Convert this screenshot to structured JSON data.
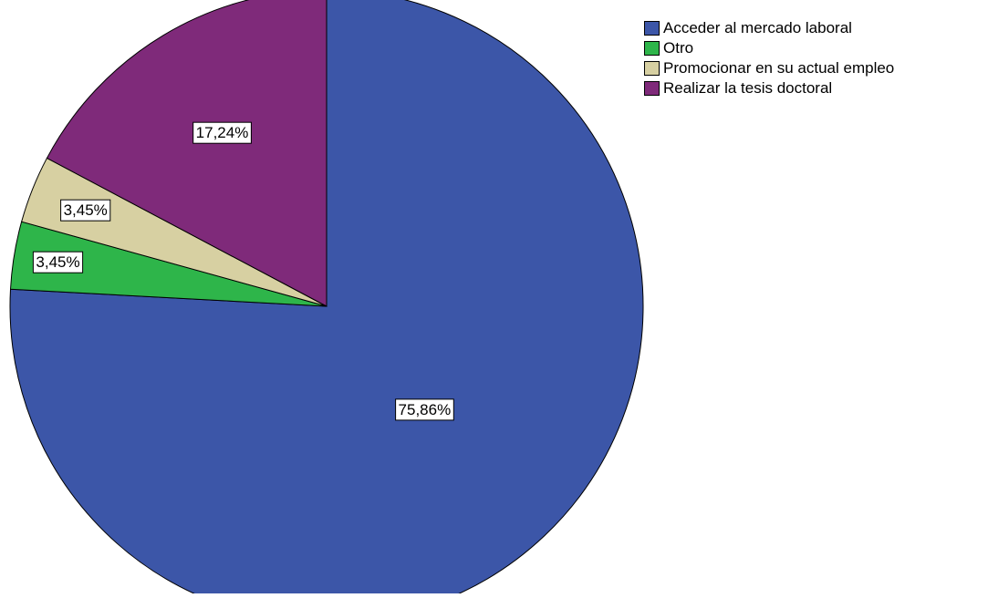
{
  "chart_data": {
    "type": "pie",
    "title": "",
    "start_angle_deg": 0,
    "direction": "clockwise",
    "legend_position": "top-right",
    "slices": [
      {
        "label": "Acceder al mercado laboral",
        "value": 75.86,
        "display": "75,86%",
        "color": "#3c56a8"
      },
      {
        "label": "Otro",
        "value": 3.45,
        "display": "3,45%",
        "color": "#2eb54a"
      },
      {
        "label": "Promocionar en su actual empleo",
        "value": 3.45,
        "display": "3,45%",
        "color": "#d7d0a2"
      },
      {
        "label": "Realizar la tesis doctoral",
        "value": 17.24,
        "display": "17,24%",
        "color": "#7f2a7a"
      }
    ]
  }
}
